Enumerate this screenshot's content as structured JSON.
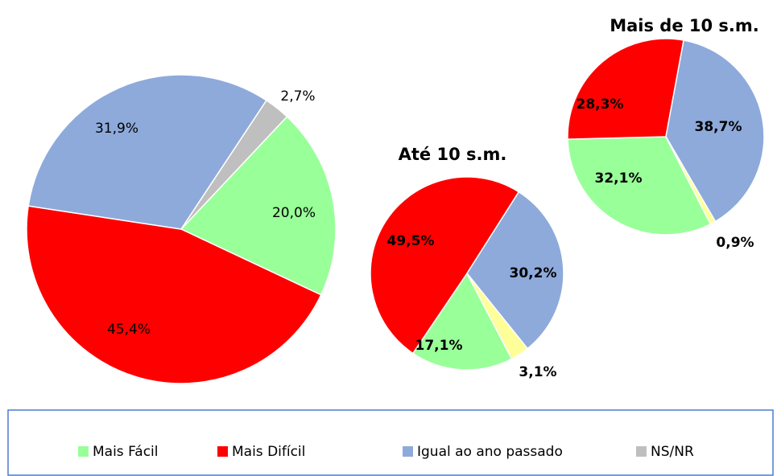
{
  "chart_data": [
    {
      "type": "pie",
      "categories": [
        "Mais Fácil",
        "Mais Difícil",
        "Igual ao ano passado",
        "NS/NR"
      ],
      "values": [
        20.0,
        45.4,
        31.9,
        2.7
      ],
      "value_labels": [
        "20,0%",
        "45,4%",
        "31,9%",
        "2,7%"
      ],
      "colors": [
        "#99ff99",
        "#ff0000",
        "#8eaadb",
        "#bfbfbf"
      ]
    },
    {
      "type": "pie",
      "title": "Até 10 s.m.",
      "values": [
        17.1,
        49.5,
        30.2,
        3.1
      ],
      "value_labels": [
        "17,1%",
        "49,5%",
        "30,2%",
        "3,1%"
      ],
      "colors": [
        "#99ff99",
        "#ff0000",
        "#8eaadb",
        "#ffff99"
      ]
    },
    {
      "type": "pie",
      "title": "Mais de 10 s.m.",
      "values": [
        32.1,
        28.3,
        38.7,
        0.9
      ],
      "value_labels": [
        "32,1%",
        "28,3%",
        "38,7%",
        "0,9%"
      ],
      "colors": [
        "#99ff99",
        "#ff0000",
        "#8eaadb",
        "#ffff99"
      ]
    }
  ]
}
